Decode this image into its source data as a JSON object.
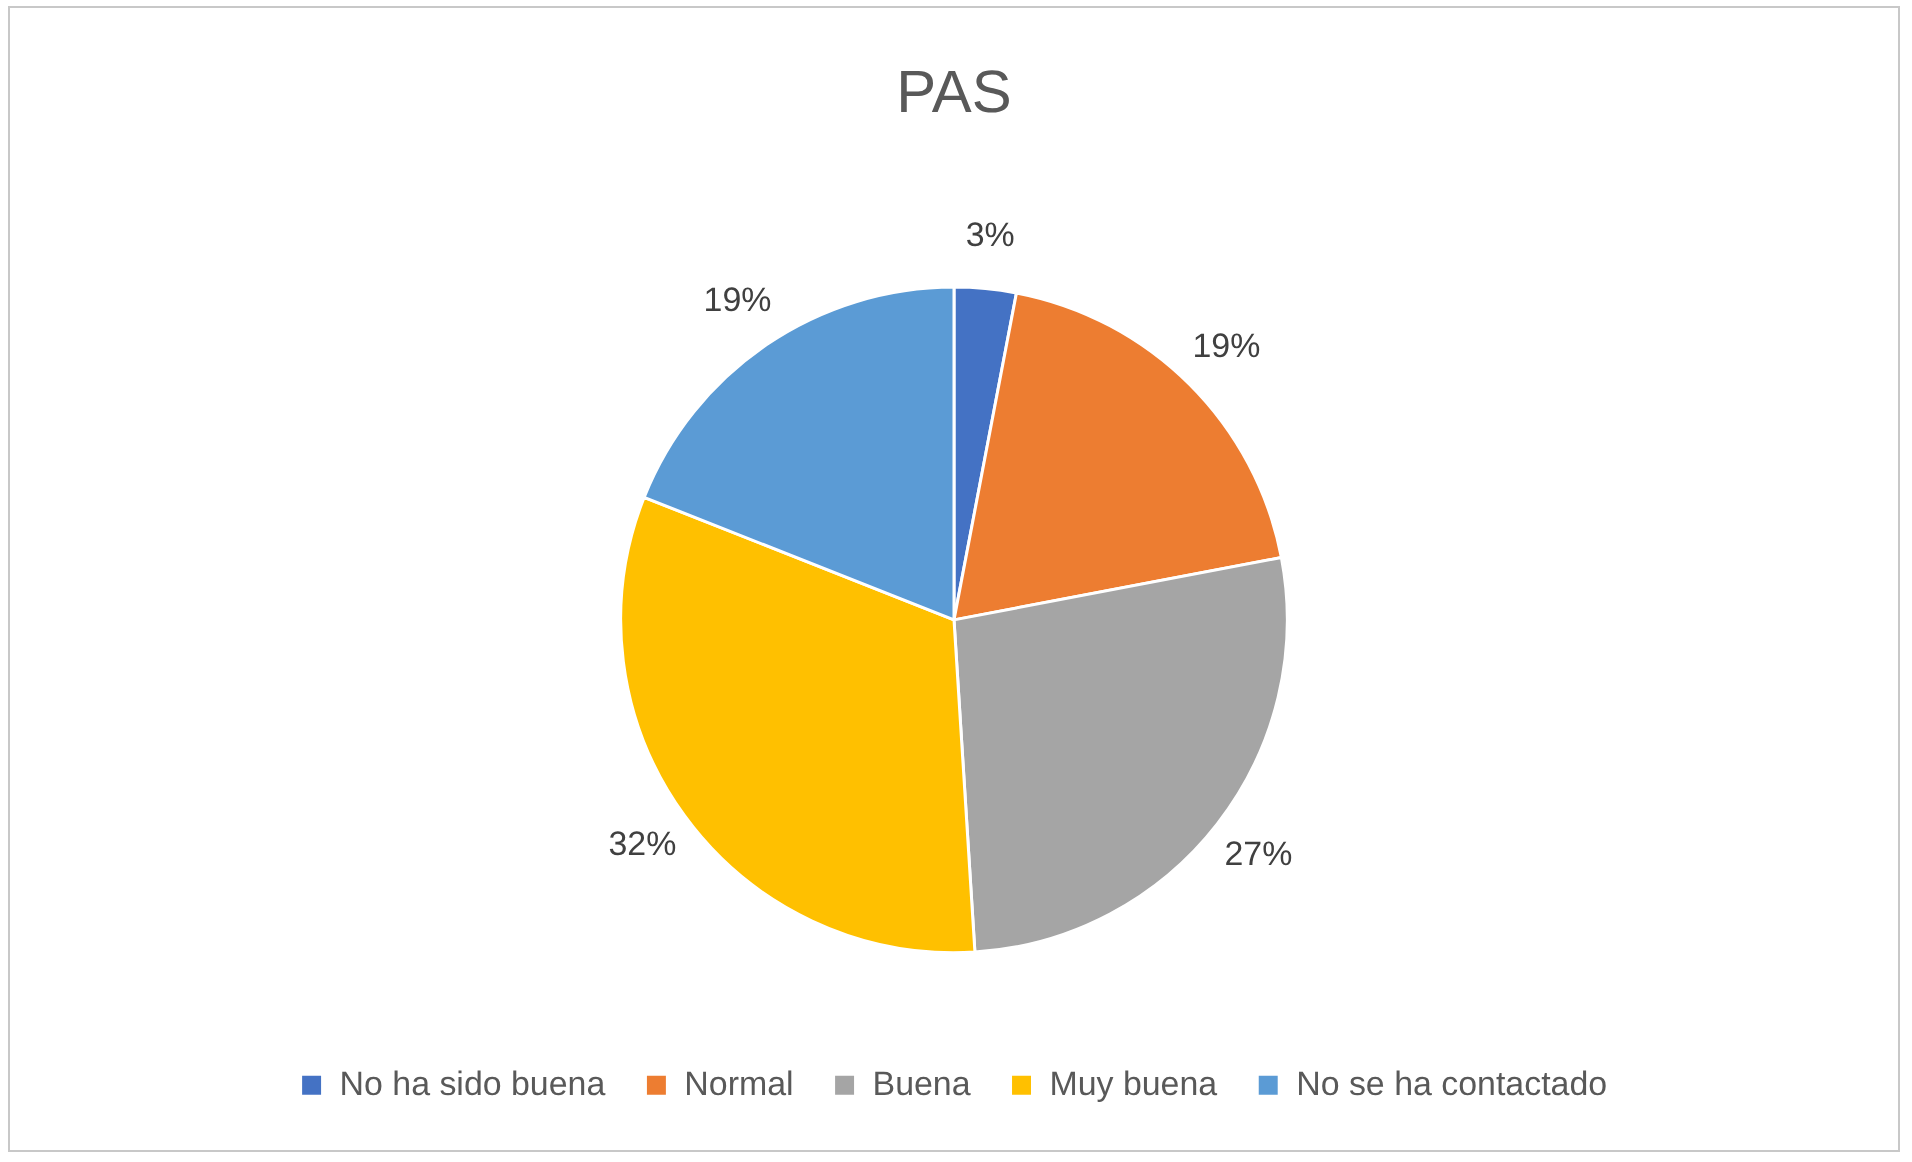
{
  "chart_data": {
    "type": "pie",
    "title": "PAS",
    "categories": [
      "No ha sido buena",
      "Normal",
      "Buena",
      "Muy buena",
      "No se ha contactado"
    ],
    "values": [
      3,
      19,
      27,
      32,
      19
    ],
    "colors": [
      "#4472c4",
      "#ed7d31",
      "#a5a5a5",
      "#ffc000",
      "#5b9bd5"
    ],
    "value_labels": [
      "3%",
      "19%",
      "27%",
      "32%",
      "19%"
    ],
    "legend": "bottom"
  }
}
